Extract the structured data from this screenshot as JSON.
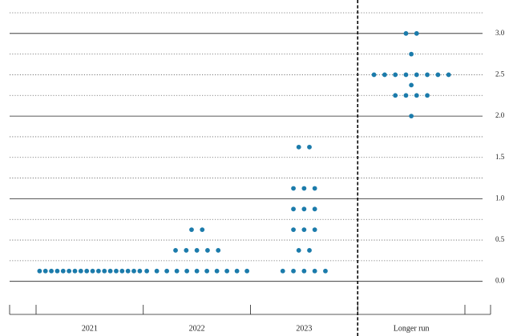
{
  "chart_data": {
    "type": "dot_plot",
    "color": "#1b7bab",
    "ylim": [
      -0.4,
      3.4
    ],
    "yticks": [
      {
        "value": 0,
        "label": "0.0"
      },
      {
        "value": 0.5,
        "label": "0.5"
      },
      {
        "value": 1,
        "label": "1.0"
      },
      {
        "value": 1.5,
        "label": "1.5"
      },
      {
        "value": 2,
        "label": "2.0"
      },
      {
        "value": 2.5,
        "label": "2.5"
      },
      {
        "value": 3,
        "label": "3.0"
      }
    ],
    "minor_yticks": [
      0.25,
      0.75,
      1.25,
      1.75,
      2.25,
      2.75,
      3.25
    ],
    "divider_after": 3,
    "columns": [
      {
        "name": "2021",
        "dots": [
          {
            "value": 0.125,
            "count": 18
          }
        ]
      },
      {
        "name": "2022",
        "dots": [
          {
            "value": 0.125,
            "count": 11
          },
          {
            "value": 0.375,
            "count": 5
          },
          {
            "value": 0.625,
            "count": 2
          }
        ]
      },
      {
        "name": "2023",
        "dots": [
          {
            "value": 0.125,
            "count": 5
          },
          {
            "value": 0.375,
            "count": 2
          },
          {
            "value": 0.625,
            "count": 3
          },
          {
            "value": 0.875,
            "count": 3
          },
          {
            "value": 1.125,
            "count": 3
          },
          {
            "value": 1.625,
            "count": 2
          }
        ]
      },
      {
        "name": "Longer run",
        "dots": [
          {
            "value": 2.0,
            "count": 1
          },
          {
            "value": 2.25,
            "count": 4
          },
          {
            "value": 2.375,
            "count": 1
          },
          {
            "value": 2.5,
            "count": 8
          },
          {
            "value": 2.75,
            "count": 1
          },
          {
            "value": 3.0,
            "count": 2
          }
        ]
      }
    ]
  }
}
